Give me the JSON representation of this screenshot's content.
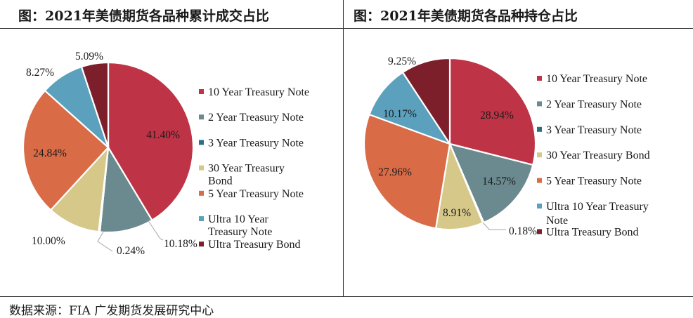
{
  "source_note": "数据来源：FIA 广发期货发展研究中心",
  "chart_data": [
    {
      "type": "pie",
      "title": "图：2021年美债期货各品种累计成交占比",
      "labels": [
        "10 Year Treasury Note",
        "2 Year Treasury Note",
        "3 Year Treasury Note",
        "30 Year Treasury Bond",
        "5 Year Treasury Note",
        "Ultra 10 Year Treasury Note",
        "Ultra Treasury Bond"
      ],
      "values": [
        41.4,
        10.18,
        0.24,
        10.0,
        24.84,
        8.27,
        5.09
      ],
      "value_labels": [
        "41.40%",
        "10.18%",
        "0.24%",
        "10.00%",
        "24.84%",
        "8.27%",
        "5.09%"
      ],
      "colors": [
        "#BE3446",
        "#6B8A8F",
        "#2C6E87",
        "#D6C889",
        "#D96B47",
        "#5BA0BC",
        "#7D1F2B"
      ],
      "legend_lines": [
        [
          "10 Year Treasury Note"
        ],
        [
          "2 Year Treasury Note"
        ],
        [
          "3 Year Treasury Note"
        ],
        [
          "30 Year Treasury",
          "Bond"
        ],
        [
          "5 Year Treasury Note"
        ],
        [
          "Ultra 10 Year",
          "Treasury Note"
        ],
        [
          "Ultra Treasury Bond"
        ]
      ],
      "legend_position": "right"
    },
    {
      "type": "pie",
      "title": "图：2021年美债期货各品种持仓占比",
      "labels": [
        "10 Year Treasury Note",
        "2 Year Treasury Note",
        "3 Year Treasury Note",
        "30 Year Treasury Bond",
        "5 Year Treasury Note",
        "Ultra 10 Year Treasury Note",
        "Ultra Treasury Bond"
      ],
      "values": [
        28.94,
        14.57,
        0.18,
        8.91,
        27.96,
        10.17,
        9.25
      ],
      "value_labels": [
        "28.94%",
        "14.57%",
        "0.18%",
        "8.91%",
        "27.96%",
        "10.17%",
        "9.25%"
      ],
      "colors": [
        "#BE3446",
        "#6B8A8F",
        "#2C6E87",
        "#D6C889",
        "#D96B47",
        "#5BA0BC",
        "#7D1F2B"
      ],
      "legend_lines": [
        [
          "10 Year Treasury Note"
        ],
        [
          "2 Year Treasury Note"
        ],
        [
          "3 Year Treasury Note"
        ],
        [
          "30 Year Treasury Bond"
        ],
        [
          "5 Year Treasury Note"
        ],
        [
          "Ultra 10 Year Treasury",
          "Note"
        ],
        [
          "Ultra Treasury Bond"
        ]
      ],
      "legend_position": "right"
    }
  ]
}
